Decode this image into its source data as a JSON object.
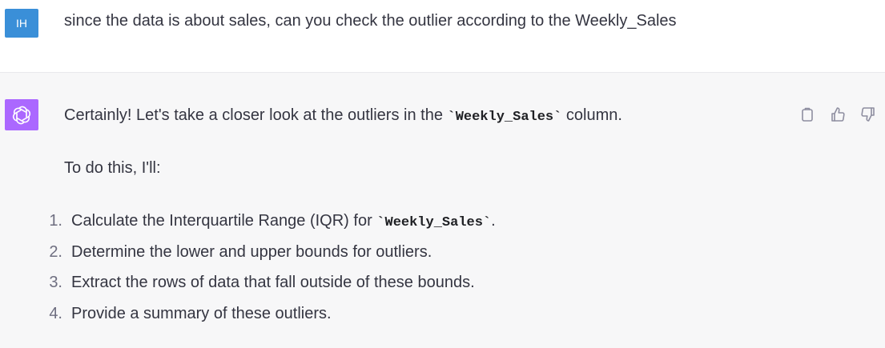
{
  "user": {
    "avatar_initials": "IH",
    "message": "since the data is about sales, can you check the outlier according to the Weekly_Sales"
  },
  "assistant": {
    "intro_before": "Certainly! Let's take a closer look at the outliers in the ",
    "intro_code": "`Weekly_Sales`",
    "intro_after": " column.",
    "plan_intro": "To do this, I'll:",
    "steps": [
      {
        "num": "1.",
        "text": "Calculate the Interquartile Range (IQR) for ",
        "code": "`Weekly_Sales`",
        "after": "."
      },
      {
        "num": "2.",
        "text": "Determine the lower and upper bounds for outliers."
      },
      {
        "num": "3.",
        "text": "Extract the rows of data that fall outside of these bounds."
      },
      {
        "num": "4.",
        "text": "Provide a summary of these outliers."
      }
    ]
  },
  "actions": [
    "copy-icon",
    "thumbs-up-icon",
    "thumbs-down-icon"
  ],
  "colors": {
    "user_avatar": "#3a8fd8",
    "assistant_avatar": "#ab68ff",
    "assistant_bg": "#f7f7f8"
  }
}
